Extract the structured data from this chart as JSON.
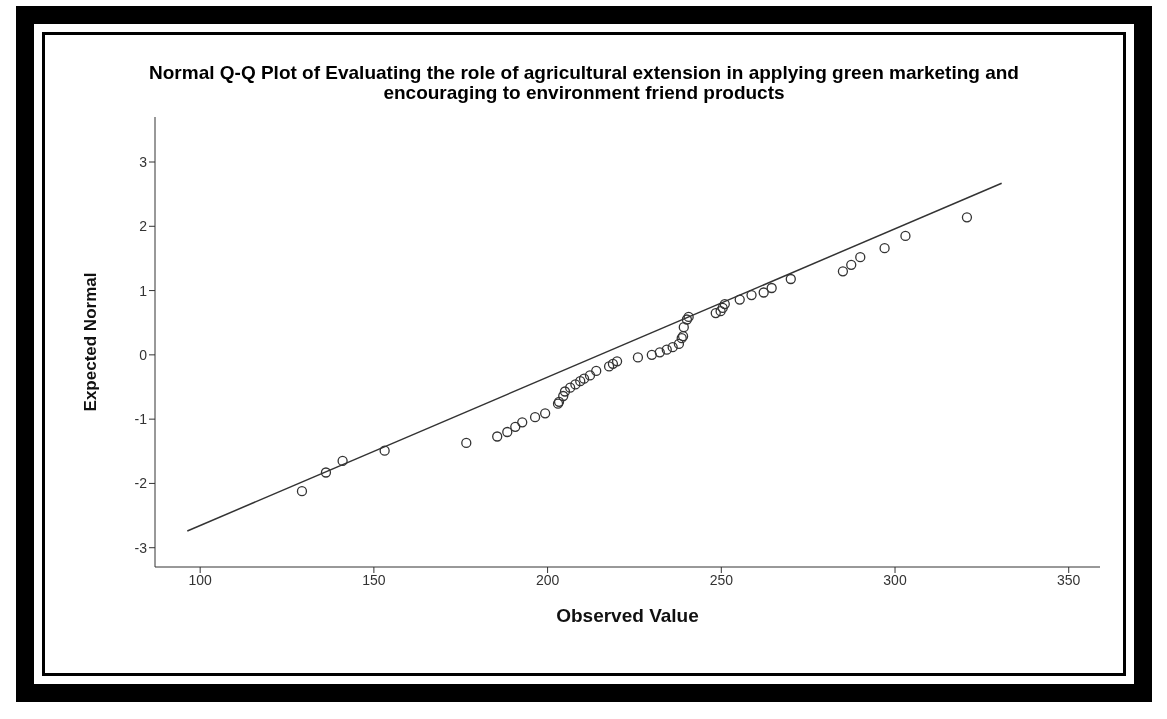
{
  "chart_data": {
    "type": "scatter",
    "title": "Normal Q-Q Plot of Evaluating the role of agricultural extension in applying green marketing and encouraging to environment friend products",
    "xlabel": "Observed Value",
    "ylabel": "Expected Normal",
    "xlim": [
      87,
      359
    ],
    "ylim": [
      -3.3,
      3.7
    ],
    "xticks": [
      100,
      150,
      200,
      250,
      300,
      350
    ],
    "yticks": [
      -3,
      -2,
      -1,
      0,
      1,
      2,
      3
    ],
    "grid": false,
    "legend": false,
    "series": [
      {
        "color": "#333333",
        "marker": "circle",
        "x": [
          129.3,
          136.2,
          141,
          153.1,
          176.6,
          185.5,
          188.4,
          190.7,
          192.7,
          196.4,
          199.3,
          203,
          203.3,
          204.5,
          205,
          206.5,
          208,
          209.4,
          210.5,
          212.2,
          214,
          217.7,
          218.8,
          220,
          226,
          230,
          232.3,
          234.3,
          236,
          237.8,
          238.6,
          239,
          239.2,
          240.1,
          240.6,
          248.4,
          249.8,
          250.4,
          251,
          255.3,
          258.7,
          262.2,
          264.5,
          270,
          285,
          287.4,
          290,
          297,
          303,
          320.7
        ],
        "values": [
          -2.12,
          -1.83,
          -1.65,
          -1.49,
          -1.37,
          -1.27,
          -1.2,
          -1.12,
          -1.05,
          -0.97,
          -0.91,
          -0.76,
          -0.73,
          -0.64,
          -0.57,
          -0.51,
          -0.46,
          -0.41,
          -0.37,
          -0.32,
          -0.25,
          -0.18,
          -0.14,
          -0.1,
          -0.04,
          0,
          0.04,
          0.08,
          0.12,
          0.17,
          0.26,
          0.29,
          0.43,
          0.55,
          0.59,
          0.65,
          0.68,
          0.73,
          0.79,
          0.86,
          0.93,
          0.97,
          1.04,
          1.18,
          1.3,
          1.4,
          1.52,
          1.66,
          1.85,
          2.14
        ]
      },
      {
        "type": "line",
        "color": "#333333",
        "line_style": "solid",
        "x": [
          96.3,
          330.7
        ],
        "values": [
          -2.74,
          2.67
        ]
      }
    ]
  }
}
